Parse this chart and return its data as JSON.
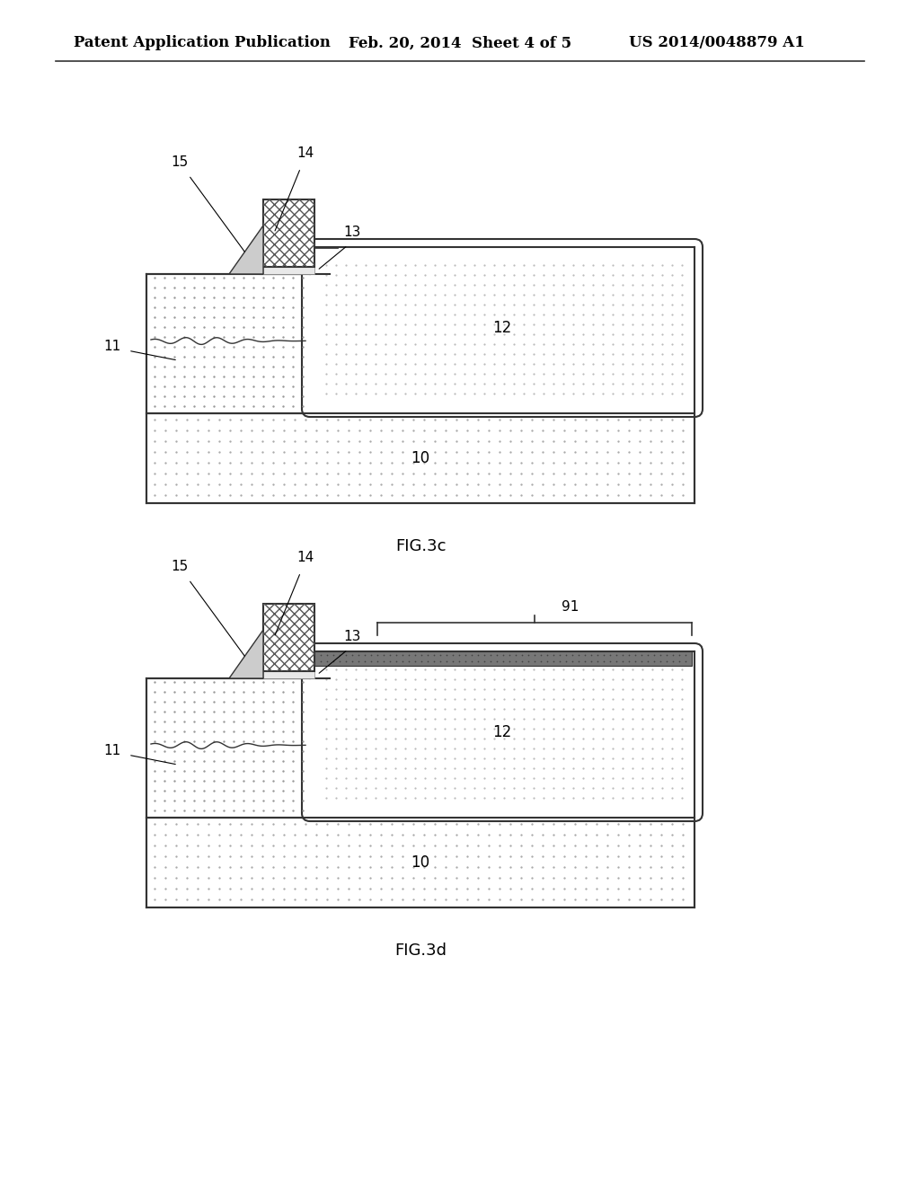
{
  "bg_color": "#ffffff",
  "header_text": "Patent Application Publication",
  "header_date": "Feb. 20, 2014  Sheet 4 of 5",
  "header_patent": "US 2014/0048879 A1",
  "fig3c_label": "FIG.3c",
  "fig3d_label": "FIG.3d",
  "outline_color": "#333333",
  "sub_dot_color": "#aaaaaa",
  "epi_dot_color": "#999999",
  "drift_dot_color": "#bbbbbb",
  "dark_layer_fill": "#777777",
  "dark_layer_dot": "#444444",
  "gate_hatch_color": "#555555",
  "spacer_color": "#cccccc",
  "thin_ox_color": "#dddddd",
  "label_fontsize": 11,
  "caption_fontsize": 13
}
